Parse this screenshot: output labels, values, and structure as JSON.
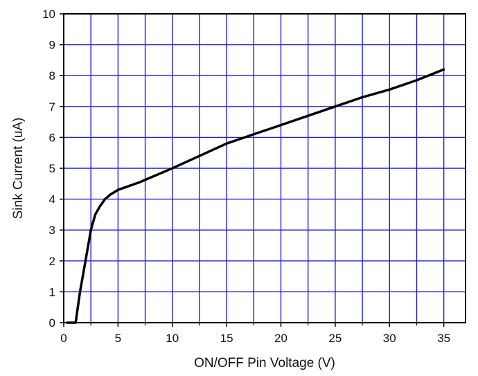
{
  "chart_data": {
    "type": "line",
    "title": "",
    "xlabel": "ON/OFF Pin Voltage (V)",
    "ylabel": "Sink Current (uA)",
    "xlim": [
      0,
      37
    ],
    "ylim": [
      0,
      10
    ],
    "x_ticks": [
      0,
      5,
      10,
      15,
      20,
      25,
      30,
      35
    ],
    "y_ticks": [
      0,
      1,
      2,
      3,
      4,
      5,
      6,
      7,
      8,
      9,
      10
    ],
    "x_tick_labels": [
      "0",
      "5",
      "10",
      "15",
      "20",
      "25",
      "30",
      "35"
    ],
    "y_tick_labels": [
      "0",
      "1",
      "2",
      "3",
      "4",
      "5",
      "6",
      "7",
      "8",
      "9",
      "10"
    ],
    "grid": true,
    "grid_color": "#1f1fd6",
    "line_color": "#000000",
    "series": [
      {
        "x": [
          0.3,
          1.1,
          1.5,
          2.0,
          2.5,
          2.9,
          3.3,
          3.8,
          4.3,
          5.0,
          7.0,
          10.0,
          12.5,
          15.0,
          17.5,
          20.0,
          22.5,
          25.0,
          27.5,
          30.0,
          32.5,
          35.0
        ],
        "y": [
          0.0,
          0.0,
          1.0,
          2.0,
          3.0,
          3.5,
          3.75,
          4.0,
          4.15,
          4.3,
          4.55,
          5.0,
          5.4,
          5.8,
          6.1,
          6.4,
          6.7,
          7.0,
          7.3,
          7.55,
          7.85,
          8.2
        ]
      }
    ]
  }
}
